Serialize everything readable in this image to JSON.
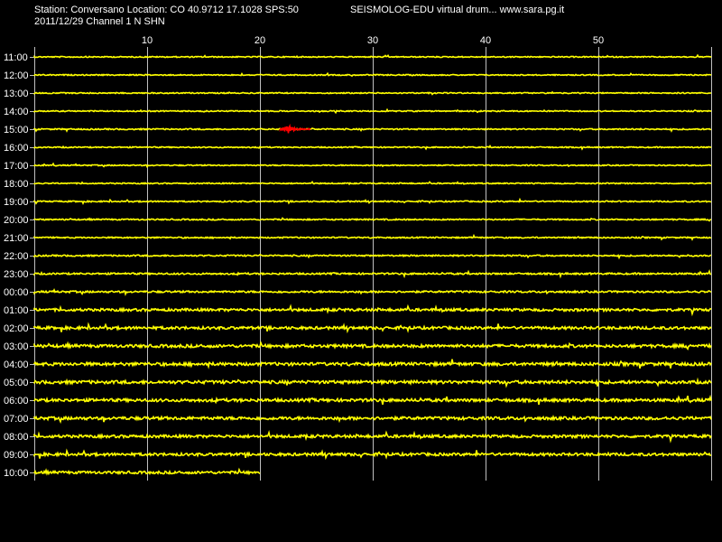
{
  "header": {
    "station_line": "Station: Conversano Location: CO 40.9712 17.1028 SPS:50",
    "date_line": "2011/12/29  Channel 1 N SHN",
    "brand_line": "SEISMOLOG-EDU virtual drum... www.sara.pg.it"
  },
  "chart_data": {
    "type": "line",
    "title": "",
    "xlabel": "",
    "ylabel": "",
    "x_ticks": [
      "10",
      "20",
      "30",
      "40",
      "50"
    ],
    "x_tick_values": [
      10,
      20,
      30,
      40,
      50
    ],
    "xlim": [
      0,
      60
    ],
    "grid": true,
    "rows": [
      {
        "label": "11:00",
        "noise": 0.6,
        "end_minute": 60
      },
      {
        "label": "12:00",
        "noise": 0.6,
        "end_minute": 60
      },
      {
        "label": "13:00",
        "noise": 0.6,
        "end_minute": 60
      },
      {
        "label": "14:00",
        "noise": 0.6,
        "end_minute": 60
      },
      {
        "label": "15:00",
        "noise": 0.7,
        "end_minute": 60,
        "event": {
          "start_minute": 21.8,
          "end_minute": 24.5,
          "color": "#ff0000",
          "peak_minute": 22.5
        }
      },
      {
        "label": "16:00",
        "noise": 0.6,
        "end_minute": 60
      },
      {
        "label": "17:00",
        "noise": 0.6,
        "end_minute": 60
      },
      {
        "label": "18:00",
        "noise": 0.6,
        "end_minute": 60
      },
      {
        "label": "19:00",
        "noise": 0.7,
        "end_minute": 60
      },
      {
        "label": "20:00",
        "noise": 0.7,
        "end_minute": 60
      },
      {
        "label": "21:00",
        "noise": 0.7,
        "end_minute": 60
      },
      {
        "label": "22:00",
        "noise": 0.8,
        "end_minute": 60
      },
      {
        "label": "23:00",
        "noise": 0.9,
        "end_minute": 60
      },
      {
        "label": "00:00",
        "noise": 1.0,
        "end_minute": 60
      },
      {
        "label": "01:00",
        "noise": 1.4,
        "end_minute": 60
      },
      {
        "label": "02:00",
        "noise": 1.5,
        "end_minute": 60
      },
      {
        "label": "03:00",
        "noise": 1.6,
        "end_minute": 60
      },
      {
        "label": "04:00",
        "noise": 1.7,
        "end_minute": 60
      },
      {
        "label": "05:00",
        "noise": 1.7,
        "end_minute": 60
      },
      {
        "label": "06:00",
        "noise": 1.6,
        "end_minute": 60
      },
      {
        "label": "07:00",
        "noise": 1.6,
        "end_minute": 60
      },
      {
        "label": "08:00",
        "noise": 1.5,
        "end_minute": 60
      },
      {
        "label": "09:00",
        "noise": 1.5,
        "end_minute": 60
      },
      {
        "label": "10:00",
        "noise": 1.4,
        "end_minute": 20
      }
    ]
  },
  "colors": {
    "background": "#000000",
    "trace": "#ffff00",
    "event": "#ff0000",
    "grid": "#c0c0c0",
    "text": "#ffffff"
  }
}
